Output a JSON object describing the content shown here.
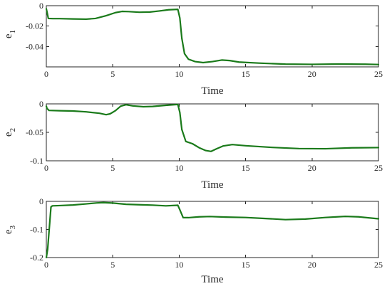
{
  "colors": {
    "line": "#1a7a1a",
    "axis": "#262626",
    "background": "#ffffff"
  },
  "chart_data": [
    {
      "type": "line",
      "title": "",
      "xlabel": "Time",
      "ylabel": "e1",
      "ylabel_main": "e",
      "ylabel_sub": "1",
      "xlim": [
        0,
        25
      ],
      "ylim": [
        -0.06,
        0
      ],
      "xticks": [
        0,
        5,
        10,
        15,
        20,
        25
      ],
      "yticks": [
        -0.04,
        -0.02,
        0
      ],
      "ytick_labels": [
        "-0.04",
        "-0.02",
        "0"
      ],
      "grid": false,
      "series": [
        {
          "x": [
            0,
            0.05,
            0.15,
            0.5,
            1,
            2,
            3,
            3.7,
            4.5,
            5.2,
            5.7,
            6.2,
            7,
            7.8,
            8.5,
            9.2,
            9.9,
            10.05,
            10.2,
            10.4,
            10.7,
            11.2,
            11.8,
            12.5,
            13.2,
            13.8,
            14.5,
            16,
            18,
            20,
            22,
            24,
            25
          ],
          "y": [
            -0.003,
            -0.006,
            -0.0125,
            -0.0127,
            -0.0127,
            -0.013,
            -0.0132,
            -0.0125,
            -0.0098,
            -0.0068,
            -0.0056,
            -0.0058,
            -0.0064,
            -0.0062,
            -0.0052,
            -0.004,
            -0.0036,
            -0.012,
            -0.032,
            -0.047,
            -0.0525,
            -0.0548,
            -0.0558,
            -0.0548,
            -0.0533,
            -0.0538,
            -0.0553,
            -0.0563,
            -0.0573,
            -0.0575,
            -0.0572,
            -0.0574,
            -0.0577
          ]
        }
      ]
    },
    {
      "type": "line",
      "title": "",
      "xlabel": "Time",
      "ylabel": "e2",
      "ylabel_main": "e",
      "ylabel_sub": "2",
      "xlim": [
        0,
        25
      ],
      "ylim": [
        -0.1,
        0
      ],
      "xticks": [
        0,
        5,
        10,
        15,
        20,
        25
      ],
      "yticks": [
        -0.1,
        -0.05,
        0
      ],
      "ytick_labels": [
        "-0.1",
        "-0.05",
        "0"
      ],
      "grid": false,
      "series": [
        {
          "x": [
            0,
            0.05,
            0.2,
            1,
            2,
            3,
            4,
            4.5,
            4.8,
            5.2,
            5.6,
            6,
            6.5,
            7.3,
            8,
            9,
            9.9,
            10.05,
            10.2,
            10.5,
            11,
            11.5,
            12,
            12.4,
            12.8,
            13.3,
            14,
            15,
            17,
            19,
            21,
            23,
            25
          ],
          "y": [
            -0.004,
            -0.008,
            -0.0115,
            -0.012,
            -0.0125,
            -0.014,
            -0.0165,
            -0.019,
            -0.0175,
            -0.012,
            -0.004,
            -0.0015,
            -0.0035,
            -0.005,
            -0.0045,
            -0.0025,
            -0.001,
            -0.015,
            -0.045,
            -0.066,
            -0.07,
            -0.077,
            -0.082,
            -0.0835,
            -0.079,
            -0.074,
            -0.0715,
            -0.0735,
            -0.0765,
            -0.0785,
            -0.0788,
            -0.0772,
            -0.0768
          ]
        }
      ]
    },
    {
      "type": "line",
      "title": "",
      "xlabel": "Time",
      "ylabel": "e3",
      "ylabel_main": "e",
      "ylabel_sub": "3",
      "xlim": [
        0,
        25
      ],
      "ylim": [
        -0.2,
        0
      ],
      "xticks": [
        0,
        5,
        10,
        15,
        20,
        25
      ],
      "yticks": [
        -0.2,
        -0.1,
        0
      ],
      "ytick_labels": [
        "-0.2",
        "-0.1",
        "0"
      ],
      "grid": false,
      "series": [
        {
          "x": [
            0,
            0.1,
            0.2,
            0.3,
            0.35,
            0.45,
            1,
            2,
            3,
            3.8,
            4.3,
            5,
            6,
            7,
            8,
            9,
            9.9,
            10.05,
            10.3,
            10.7,
            11.5,
            12.3,
            13.5,
            15,
            16.5,
            18,
            19.5,
            21,
            22.5,
            23.5,
            25
          ],
          "y": [
            -0.2,
            -0.17,
            -0.11,
            -0.05,
            -0.02,
            -0.016,
            -0.015,
            -0.013,
            -0.009,
            -0.0055,
            -0.0045,
            -0.006,
            -0.0105,
            -0.012,
            -0.0135,
            -0.016,
            -0.014,
            -0.03,
            -0.058,
            -0.058,
            -0.055,
            -0.054,
            -0.056,
            -0.0575,
            -0.061,
            -0.065,
            -0.063,
            -0.0575,
            -0.0535,
            -0.055,
            -0.062
          ]
        }
      ]
    }
  ]
}
